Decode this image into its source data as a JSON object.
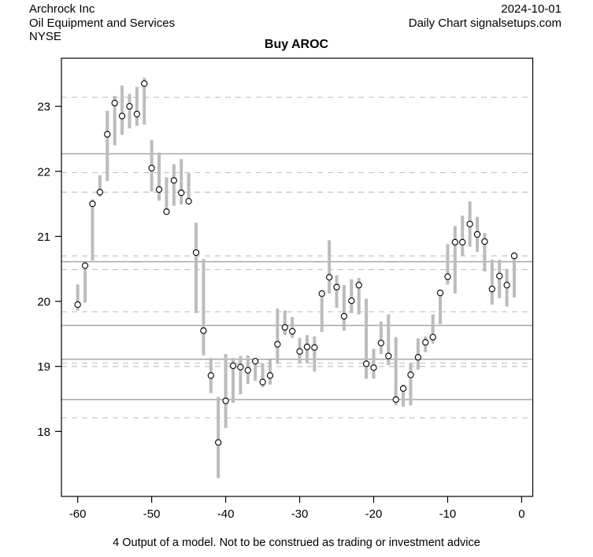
{
  "header": {
    "company": "Archrock Inc",
    "industry": "Oil Equipment and Services",
    "exchange": "NYSE",
    "date": "2024-10-01",
    "source_line": "Daily Chart signalsetups.com"
  },
  "title": "Buy AROC",
  "caption": "4 Output of a model. Not to be construed as trading or investment advice",
  "chart_data": {
    "type": "bar",
    "subtype": "high-low-close daily price bars, close shown as open circle",
    "title": "Buy AROC",
    "xlabel": "",
    "ylabel": "",
    "xlim": [
      -62.2,
      1.5
    ],
    "ylim": [
      17.0,
      23.74
    ],
    "x_ticks": [
      -60,
      -50,
      -40,
      -30,
      -20,
      -10,
      0
    ],
    "y_ticks": [
      18,
      19,
      20,
      21,
      22,
      23
    ],
    "grid_solid_levels": [
      22.27,
      20.61,
      19.63,
      19.11,
      18.49
    ],
    "grid_dashed_levels": [
      23.14,
      21.98,
      21.68,
      20.7,
      20.49,
      19.84,
      19.05,
      19.0,
      18.21
    ],
    "legend": "none",
    "bars_format": "[day, high, low, close]",
    "bars": [
      [
        -60,
        20.26,
        19.86,
        19.95
      ],
      [
        -59,
        20.6,
        19.98,
        20.55
      ],
      [
        -58,
        21.57,
        20.63,
        21.5
      ],
      [
        -57,
        21.94,
        21.61,
        21.68
      ],
      [
        -56,
        22.93,
        21.85,
        22.57
      ],
      [
        -55,
        23.16,
        22.4,
        23.05
      ],
      [
        -54,
        23.32,
        22.56,
        22.85
      ],
      [
        -53,
        23.19,
        22.66,
        23.0
      ],
      [
        -52,
        23.3,
        22.7,
        22.88
      ],
      [
        -51,
        23.44,
        22.72,
        23.35
      ],
      [
        -50,
        22.48,
        21.69,
        22.05
      ],
      [
        -49,
        22.29,
        21.55,
        21.72
      ],
      [
        -48,
        21.91,
        21.4,
        21.38
      ],
      [
        -47,
        22.11,
        21.47,
        21.86
      ],
      [
        -46,
        22.19,
        21.49,
        21.67
      ],
      [
        -45,
        21.97,
        21.5,
        21.54
      ],
      [
        -44,
        21.21,
        19.82,
        20.75
      ],
      [
        -43,
        20.65,
        19.17,
        19.55
      ],
      [
        -42,
        19.13,
        18.59,
        18.86
      ],
      [
        -41,
        18.53,
        17.28,
        17.83
      ],
      [
        -40,
        19.19,
        18.05,
        18.47
      ],
      [
        -39,
        19.13,
        18.44,
        19.01
      ],
      [
        -38,
        19.16,
        18.57,
        18.99
      ],
      [
        -37,
        19.17,
        18.73,
        18.94
      ],
      [
        -36,
        19.12,
        18.78,
        19.08
      ],
      [
        -35,
        19.05,
        18.68,
        18.76
      ],
      [
        -34,
        19.1,
        18.72,
        18.86
      ],
      [
        -33,
        19.89,
        19.04,
        19.34
      ],
      [
        -32,
        19.86,
        19.48,
        19.6
      ],
      [
        -31,
        19.76,
        19.44,
        19.54
      ],
      [
        -30,
        19.44,
        19.05,
        19.23
      ],
      [
        -29,
        19.48,
        19.05,
        19.3
      ],
      [
        -28,
        19.46,
        18.92,
        19.29
      ],
      [
        -27,
        20.15,
        19.53,
        20.12
      ],
      [
        -26,
        20.94,
        20.12,
        20.37
      ],
      [
        -25,
        20.4,
        19.9,
        20.22
      ],
      [
        -24,
        20.25,
        19.55,
        19.77
      ],
      [
        -23,
        20.34,
        19.82,
        20.01
      ],
      [
        -22,
        20.36,
        19.8,
        20.25
      ],
      [
        -21,
        20.04,
        18.81,
        19.04
      ],
      [
        -20,
        19.27,
        18.81,
        18.98
      ],
      [
        -19,
        19.69,
        19.19,
        19.36
      ],
      [
        -18,
        19.8,
        19.02,
        19.16
      ],
      [
        -17,
        19.45,
        18.4,
        18.49
      ],
      [
        -16,
        18.72,
        18.38,
        18.66
      ],
      [
        -15,
        19.05,
        18.4,
        18.87
      ],
      [
        -14,
        19.43,
        18.95,
        19.14
      ],
      [
        -13,
        19.46,
        19.22,
        19.37
      ],
      [
        -12,
        19.8,
        19.35,
        19.45
      ],
      [
        -11,
        20.18,
        19.65,
        20.13
      ],
      [
        -10,
        20.88,
        20.26,
        20.38
      ],
      [
        -9,
        21.16,
        20.12,
        20.91
      ],
      [
        -8,
        21.32,
        20.7,
        20.91
      ],
      [
        -7,
        21.54,
        20.84,
        21.19
      ],
      [
        -6,
        21.3,
        20.76,
        21.03
      ],
      [
        -5,
        21.05,
        20.46,
        20.92
      ],
      [
        -4,
        20.64,
        19.95,
        20.19
      ],
      [
        -3,
        20.64,
        20.05,
        20.39
      ],
      [
        -2,
        20.5,
        19.92,
        20.25
      ],
      [
        -1,
        20.76,
        20.06,
        20.7
      ]
    ],
    "colors": {
      "bar": "#bcbcbc",
      "close_marker_fill": "#ffffff",
      "close_marker_stroke": "#000000",
      "grid_solid": "#a6a6a6",
      "grid_dashed": "#c3c3c3",
      "axis": "#000000",
      "text": "#000000"
    }
  }
}
